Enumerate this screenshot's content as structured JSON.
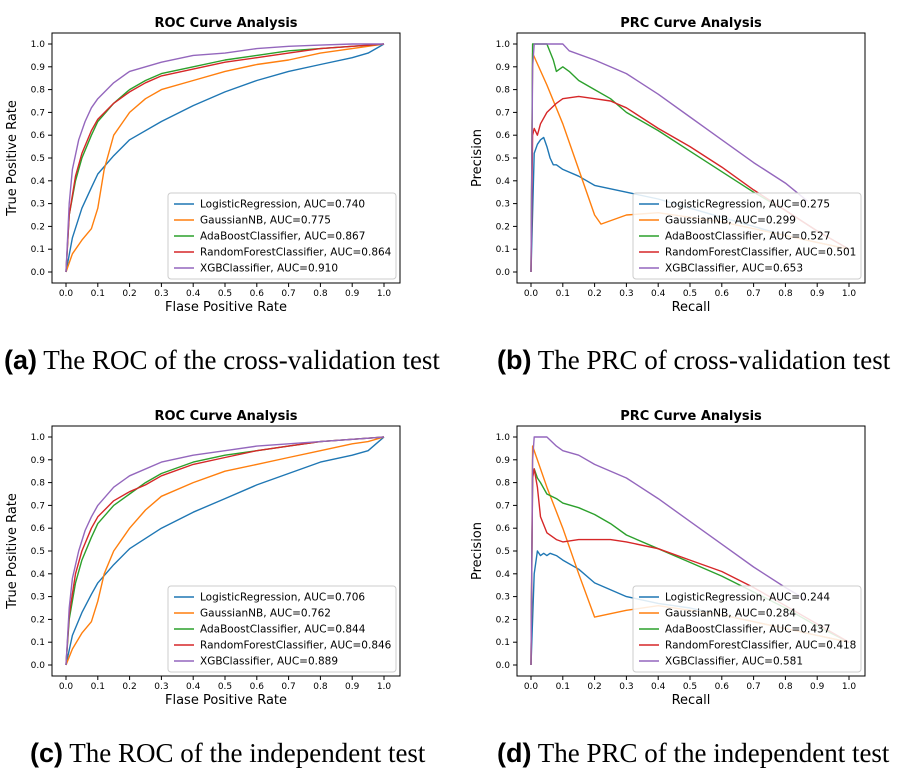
{
  "colors": {
    "LogisticRegression": "#1f77b4",
    "GaussianNB": "#ff7f0e",
    "AdaBoostClassifier": "#2ca02c",
    "RandomForestClassifier": "#d62728",
    "XGBClassifier": "#9467bd"
  },
  "captions": [
    {
      "label": "(a)",
      "text": "The ROC of the cross-validation test"
    },
    {
      "label": "(b)",
      "text": "The PRC of cross-validation test"
    },
    {
      "label": "(c)",
      "text": "The ROC of the independent test"
    },
    {
      "label": "(d)",
      "text": "The PRC of the independent test"
    }
  ],
  "chart_data": [
    {
      "type": "line",
      "title": "ROC Curve Analysis",
      "xlabel": "Flase Positive Rate",
      "ylabel": "True Positive Rate",
      "xlim": [
        0,
        1
      ],
      "ylim": [
        0,
        1
      ],
      "ticks": [
        "0.0",
        "0.1",
        "0.2",
        "0.3",
        "0.4",
        "0.5",
        "0.6",
        "0.7",
        "0.8",
        "0.9",
        "1.0"
      ],
      "legend_position": "lower-right",
      "grid": false,
      "series": [
        {
          "name": "LogisticRegression, AUC=0.740",
          "model": "LogisticRegression",
          "x": [
            0,
            0.02,
            0.05,
            0.08,
            0.1,
            0.15,
            0.2,
            0.3,
            0.4,
            0.5,
            0.6,
            0.7,
            0.8,
            0.9,
            0.95,
            1.0
          ],
          "y": [
            0,
            0.15,
            0.28,
            0.37,
            0.43,
            0.51,
            0.58,
            0.66,
            0.73,
            0.79,
            0.84,
            0.88,
            0.91,
            0.94,
            0.96,
            1.0
          ]
        },
        {
          "name": "GaussianNB, AUC=0.775",
          "model": "GaussianNB",
          "x": [
            0,
            0.02,
            0.05,
            0.08,
            0.1,
            0.12,
            0.15,
            0.2,
            0.25,
            0.3,
            0.4,
            0.5,
            0.6,
            0.7,
            0.8,
            0.9,
            1.0
          ],
          "y": [
            0,
            0.08,
            0.14,
            0.19,
            0.28,
            0.45,
            0.6,
            0.7,
            0.76,
            0.8,
            0.84,
            0.88,
            0.91,
            0.93,
            0.96,
            0.98,
            1.0
          ]
        },
        {
          "name": "AdaBoostClassifier, AUC=0.867",
          "model": "AdaBoostClassifier",
          "x": [
            0,
            0.01,
            0.03,
            0.05,
            0.08,
            0.1,
            0.15,
            0.2,
            0.25,
            0.3,
            0.4,
            0.5,
            0.6,
            0.7,
            0.8,
            0.9,
            1.0
          ],
          "y": [
            0,
            0.25,
            0.4,
            0.5,
            0.6,
            0.66,
            0.74,
            0.8,
            0.84,
            0.87,
            0.9,
            0.93,
            0.95,
            0.97,
            0.98,
            0.99,
            1.0
          ]
        },
        {
          "name": "RandomForestClassifier, AUC=0.864",
          "model": "RandomForestClassifier",
          "x": [
            0,
            0.01,
            0.03,
            0.05,
            0.08,
            0.1,
            0.15,
            0.2,
            0.25,
            0.3,
            0.4,
            0.5,
            0.6,
            0.7,
            0.8,
            0.9,
            1.0
          ],
          "y": [
            0,
            0.25,
            0.42,
            0.52,
            0.62,
            0.67,
            0.74,
            0.79,
            0.83,
            0.86,
            0.89,
            0.92,
            0.94,
            0.96,
            0.98,
            0.99,
            1.0
          ]
        },
        {
          "name": "XGBClassifier, AUC=0.910",
          "model": "XGBClassifier",
          "x": [
            0,
            0.01,
            0.02,
            0.04,
            0.06,
            0.08,
            0.1,
            0.15,
            0.2,
            0.3,
            0.4,
            0.5,
            0.6,
            0.7,
            0.8,
            0.9,
            1.0
          ],
          "y": [
            0,
            0.3,
            0.45,
            0.58,
            0.66,
            0.72,
            0.76,
            0.83,
            0.88,
            0.92,
            0.95,
            0.96,
            0.98,
            0.99,
            0.995,
            1.0,
            1.0
          ]
        }
      ]
    },
    {
      "type": "line",
      "title": "PRC Curve Analysis",
      "xlabel": "Recall",
      "ylabel": "Precision",
      "xlim": [
        0,
        1
      ],
      "ylim": [
        0,
        1
      ],
      "ticks": [
        "0.0",
        "0.1",
        "0.2",
        "0.3",
        "0.4",
        "0.5",
        "0.6",
        "0.7",
        "0.8",
        "0.9",
        "1.0"
      ],
      "legend_position": "lower-right",
      "grid": false,
      "series": [
        {
          "name": "LogisticRegression, AUC=0.275",
          "model": "LogisticRegression",
          "x": [
            0,
            0.01,
            0.02,
            0.03,
            0.04,
            0.05,
            0.06,
            0.07,
            0.08,
            0.1,
            0.15,
            0.2,
            0.3,
            0.4,
            0.5,
            0.6,
            0.7,
            0.8,
            0.9,
            1.0
          ],
          "y": [
            0,
            0.52,
            0.56,
            0.58,
            0.59,
            0.55,
            0.5,
            0.47,
            0.47,
            0.45,
            0.42,
            0.38,
            0.35,
            0.32,
            0.28,
            0.24,
            0.2,
            0.16,
            0.13,
            0.1
          ]
        },
        {
          "name": "GaussianNB, AUC=0.299",
          "model": "GaussianNB",
          "x": [
            0,
            0.005,
            0.05,
            0.1,
            0.15,
            0.2,
            0.22,
            0.3,
            0.4,
            0.5,
            0.6,
            0.7,
            0.8,
            0.9,
            1.0
          ],
          "y": [
            0,
            0.96,
            0.82,
            0.65,
            0.45,
            0.25,
            0.21,
            0.25,
            0.26,
            0.24,
            0.22,
            0.19,
            0.16,
            0.13,
            0.1
          ]
        },
        {
          "name": "AdaBoostClassifier, AUC=0.527",
          "model": "AdaBoostClassifier",
          "x": [
            0,
            0.005,
            0.01,
            0.03,
            0.05,
            0.07,
            0.08,
            0.1,
            0.12,
            0.15,
            0.2,
            0.25,
            0.3,
            0.4,
            0.5,
            0.6,
            0.7,
            0.8,
            0.9,
            1.0
          ],
          "y": [
            0,
            1.0,
            1.0,
            1.0,
            1.0,
            0.93,
            0.88,
            0.9,
            0.88,
            0.84,
            0.8,
            0.76,
            0.7,
            0.62,
            0.53,
            0.44,
            0.35,
            0.27,
            0.18,
            0.1
          ]
        },
        {
          "name": "RandomForestClassifier, AUC=0.501",
          "model": "RandomForestClassifier",
          "x": [
            0,
            0.005,
            0.01,
            0.02,
            0.03,
            0.05,
            0.08,
            0.1,
            0.15,
            0.2,
            0.25,
            0.3,
            0.4,
            0.5,
            0.6,
            0.7,
            0.8,
            0.9,
            1.0
          ],
          "y": [
            0,
            0.6,
            0.63,
            0.6,
            0.65,
            0.7,
            0.74,
            0.76,
            0.77,
            0.76,
            0.75,
            0.72,
            0.63,
            0.55,
            0.46,
            0.36,
            0.27,
            0.18,
            0.1
          ]
        },
        {
          "name": "XGBClassifier, AUC=0.653",
          "model": "XGBClassifier",
          "x": [
            0,
            0.005,
            0.01,
            0.05,
            0.1,
            0.12,
            0.2,
            0.3,
            0.4,
            0.5,
            0.6,
            0.7,
            0.8,
            0.87
          ],
          "y": [
            0,
            0.9,
            1.0,
            1.0,
            1.0,
            0.97,
            0.93,
            0.87,
            0.78,
            0.68,
            0.58,
            0.48,
            0.39,
            0.31
          ]
        }
      ]
    },
    {
      "type": "line",
      "title": "ROC Curve Analysis",
      "xlabel": "Flase Positive Rate",
      "ylabel": "True Positive Rate",
      "xlim": [
        0,
        1
      ],
      "ylim": [
        0,
        1
      ],
      "ticks": [
        "0.0",
        "0.1",
        "0.2",
        "0.3",
        "0.4",
        "0.5",
        "0.6",
        "0.7",
        "0.8",
        "0.9",
        "1.0"
      ],
      "legend_position": "lower-right",
      "grid": false,
      "series": [
        {
          "name": "LogisticRegression, AUC=0.706",
          "model": "LogisticRegression",
          "x": [
            0,
            0.02,
            0.05,
            0.08,
            0.1,
            0.15,
            0.2,
            0.3,
            0.4,
            0.5,
            0.6,
            0.7,
            0.8,
            0.9,
            0.95,
            1.0
          ],
          "y": [
            0,
            0.13,
            0.23,
            0.31,
            0.36,
            0.44,
            0.51,
            0.6,
            0.67,
            0.73,
            0.79,
            0.84,
            0.89,
            0.92,
            0.94,
            1.0
          ]
        },
        {
          "name": "GaussianNB, AUC=0.762",
          "model": "GaussianNB",
          "x": [
            0,
            0.02,
            0.05,
            0.08,
            0.1,
            0.12,
            0.15,
            0.2,
            0.25,
            0.3,
            0.4,
            0.5,
            0.6,
            0.7,
            0.8,
            0.9,
            0.95,
            1.0
          ],
          "y": [
            0,
            0.07,
            0.14,
            0.19,
            0.28,
            0.4,
            0.5,
            0.6,
            0.68,
            0.74,
            0.8,
            0.85,
            0.88,
            0.91,
            0.94,
            0.97,
            0.98,
            1.0
          ]
        },
        {
          "name": "AdaBoostClassifier, AUC=0.844",
          "model": "AdaBoostClassifier",
          "x": [
            0,
            0.01,
            0.03,
            0.05,
            0.08,
            0.1,
            0.15,
            0.2,
            0.25,
            0.3,
            0.4,
            0.5,
            0.6,
            0.7,
            0.8,
            0.9,
            1.0
          ],
          "y": [
            0,
            0.2,
            0.36,
            0.46,
            0.56,
            0.62,
            0.7,
            0.75,
            0.8,
            0.84,
            0.89,
            0.92,
            0.94,
            0.96,
            0.98,
            0.99,
            1.0
          ]
        },
        {
          "name": "RandomForestClassifier, AUC=0.846",
          "model": "RandomForestClassifier",
          "x": [
            0,
            0.01,
            0.03,
            0.05,
            0.08,
            0.1,
            0.15,
            0.2,
            0.25,
            0.3,
            0.4,
            0.5,
            0.6,
            0.7,
            0.8,
            0.9,
            1.0
          ],
          "y": [
            0,
            0.22,
            0.4,
            0.5,
            0.6,
            0.65,
            0.72,
            0.76,
            0.79,
            0.83,
            0.88,
            0.91,
            0.94,
            0.96,
            0.98,
            0.99,
            1.0
          ]
        },
        {
          "name": "XGBClassifier, AUC=0.889",
          "model": "XGBClassifier",
          "x": [
            0,
            0.01,
            0.02,
            0.04,
            0.06,
            0.08,
            0.1,
            0.15,
            0.2,
            0.3,
            0.4,
            0.5,
            0.6,
            0.7,
            0.8,
            0.9,
            1.0
          ],
          "y": [
            0,
            0.25,
            0.38,
            0.5,
            0.59,
            0.65,
            0.7,
            0.78,
            0.83,
            0.89,
            0.92,
            0.94,
            0.96,
            0.97,
            0.98,
            0.99,
            1.0
          ]
        }
      ]
    },
    {
      "type": "line",
      "title": "PRC Curve Analysis",
      "xlabel": "Recall",
      "ylabel": "Precision",
      "xlim": [
        0,
        1
      ],
      "ylim": [
        0,
        1
      ],
      "ticks": [
        "0.0",
        "0.1",
        "0.2",
        "0.3",
        "0.4",
        "0.5",
        "0.6",
        "0.7",
        "0.8",
        "0.9",
        "1.0"
      ],
      "legend_position": "lower-right",
      "grid": false,
      "series": [
        {
          "name": "LogisticRegression, AUC=0.244",
          "model": "LogisticRegression",
          "x": [
            0,
            0.01,
            0.02,
            0.03,
            0.04,
            0.05,
            0.06,
            0.08,
            0.1,
            0.15,
            0.2,
            0.3,
            0.4,
            0.5,
            0.6,
            0.7,
            0.8,
            0.9,
            1.0
          ],
          "y": [
            0,
            0.4,
            0.5,
            0.48,
            0.49,
            0.48,
            0.49,
            0.48,
            0.46,
            0.42,
            0.36,
            0.3,
            0.27,
            0.25,
            0.22,
            0.19,
            0.16,
            0.13,
            0.1
          ]
        },
        {
          "name": "GaussianNB, AUC=0.284",
          "model": "GaussianNB",
          "x": [
            0,
            0.005,
            0.05,
            0.1,
            0.15,
            0.2,
            0.3,
            0.4,
            0.5,
            0.6,
            0.7,
            0.8,
            0.9,
            1.0
          ],
          "y": [
            0,
            0.96,
            0.78,
            0.6,
            0.4,
            0.21,
            0.24,
            0.26,
            0.24,
            0.22,
            0.19,
            0.16,
            0.13,
            0.1
          ]
        },
        {
          "name": "AdaBoostClassifier, AUC=0.437",
          "model": "AdaBoostClassifier",
          "x": [
            0,
            0.005,
            0.01,
            0.02,
            0.03,
            0.05,
            0.08,
            0.1,
            0.15,
            0.2,
            0.25,
            0.3,
            0.4,
            0.5,
            0.6,
            0.7,
            0.8,
            0.9,
            1.0
          ],
          "y": [
            0,
            0.84,
            0.86,
            0.82,
            0.8,
            0.75,
            0.73,
            0.71,
            0.69,
            0.66,
            0.62,
            0.57,
            0.51,
            0.45,
            0.39,
            0.32,
            0.25,
            0.17,
            0.1
          ]
        },
        {
          "name": "RandomForestClassifier, AUC=0.418",
          "model": "RandomForestClassifier",
          "x": [
            0,
            0.005,
            0.01,
            0.02,
            0.03,
            0.05,
            0.08,
            0.1,
            0.15,
            0.2,
            0.25,
            0.3,
            0.4,
            0.5,
            0.6,
            0.7,
            0.8,
            0.9,
            1.0
          ],
          "y": [
            0,
            0.82,
            0.86,
            0.78,
            0.65,
            0.58,
            0.55,
            0.54,
            0.55,
            0.55,
            0.55,
            0.54,
            0.51,
            0.46,
            0.41,
            0.34,
            0.26,
            0.18,
            0.1
          ]
        },
        {
          "name": "XGBClassifier, AUC=0.581",
          "model": "XGBClassifier",
          "x": [
            0,
            0.005,
            0.01,
            0.05,
            0.08,
            0.1,
            0.15,
            0.2,
            0.3,
            0.4,
            0.5,
            0.6,
            0.7,
            0.8,
            0.86
          ],
          "y": [
            0,
            0.9,
            1.0,
            1.0,
            0.96,
            0.94,
            0.92,
            0.88,
            0.82,
            0.73,
            0.63,
            0.53,
            0.43,
            0.34,
            0.29
          ]
        }
      ]
    }
  ]
}
